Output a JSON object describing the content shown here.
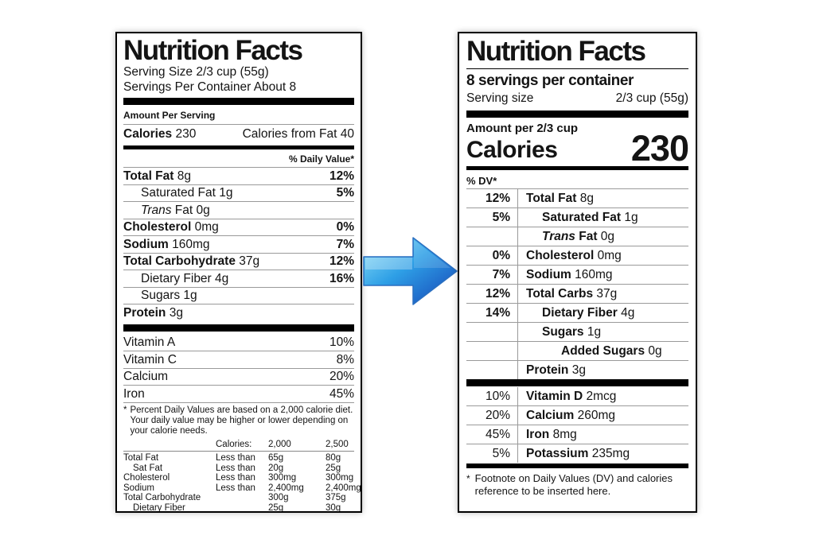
{
  "colors": {
    "arrow_light": "#8BE0F8",
    "arrow_mid": "#2E9FE6",
    "arrow_dark": "#1543B6",
    "arrow_stroke": "#2A6FC0",
    "bar": "#000000",
    "hairline": "#9A9A9A"
  },
  "arrow": {
    "meaning": "old label transitions to new label"
  },
  "old_label": {
    "title": "Nutrition Facts",
    "serving_size_line": "Serving Size 2/3 cup (55g)",
    "servings_line": "Servings Per Container About 8",
    "amount_header": "Amount Per Serving",
    "calories_label": "Calories",
    "calories_value": "230",
    "calories_from_fat": "Calories from Fat 40",
    "dv_header": "% Daily Value*",
    "rows": [
      {
        "n": "Total Fat",
        "a": "8g",
        "dv": "12%",
        "b": true,
        "ind": 0
      },
      {
        "n": "Saturated Fat",
        "a": "1g",
        "dv": "5%",
        "b": false,
        "ind": 1
      },
      {
        "it": "Trans",
        "n": "Fat",
        "a": "0g",
        "dv": "",
        "b": false,
        "ind": 1
      },
      {
        "n": "Cholesterol",
        "a": "0mg",
        "dv": "0%",
        "b": true,
        "ind": 0
      },
      {
        "n": "Sodium",
        "a": "160mg",
        "dv": "7%",
        "b": true,
        "ind": 0
      },
      {
        "n": "Total Carbohydrate",
        "a": "37g",
        "dv": "12%",
        "b": true,
        "ind": 0
      },
      {
        "n": "Dietary Fiber",
        "a": "4g",
        "dv": "16%",
        "b": false,
        "ind": 1
      },
      {
        "n": "Sugars",
        "a": "1g",
        "dv": "",
        "b": false,
        "ind": 1
      },
      {
        "n": "Protein",
        "a": "3g",
        "dv": "",
        "b": true,
        "ind": 0
      }
    ],
    "vitamins": [
      {
        "n": "Vitamin A",
        "dv": "10%"
      },
      {
        "n": "Vitamin C",
        "dv": "8%"
      },
      {
        "n": "Calcium",
        "dv": "20%"
      },
      {
        "n": "Iron",
        "dv": "45%"
      }
    ],
    "footnote": {
      "ast": "*",
      "text": "Percent Daily Values are based on a 2,000 calorie diet. Your daily value may be higher or lower depending on your calorie needs."
    },
    "footnote_table": {
      "header": [
        "",
        "Calories:",
        "2,000",
        "2,500"
      ],
      "rows": [
        {
          "c": [
            "Total Fat",
            "Less than",
            "65g",
            "80g"
          ],
          "ind": false
        },
        {
          "c": [
            "Sat Fat",
            "Less than",
            "20g",
            "25g"
          ],
          "ind": true
        },
        {
          "c": [
            "Cholesterol",
            "Less than",
            "300mg",
            "300mg"
          ],
          "ind": false
        },
        {
          "c": [
            "Sodium",
            "Less than",
            "2,400mg",
            "2,400mg"
          ],
          "ind": false
        },
        {
          "c": [
            "Total Carbohydrate",
            "",
            "300g",
            "375g"
          ],
          "ind": false
        },
        {
          "c": [
            "Dietary Fiber",
            "",
            "25g",
            "30g"
          ],
          "ind": true
        }
      ]
    }
  },
  "new_label": {
    "title": "Nutrition Facts",
    "servings_line": "8 servings per container",
    "serving_size_label": "Serving size",
    "serving_size_value": "2/3 cup (55g)",
    "amount_header": "Amount per 2/3 cup",
    "calories_label": "Calories",
    "calories_value": "230",
    "dv_header": "% DV*",
    "rows": [
      {
        "dv": "12%",
        "n": "Total Fat",
        "a": "8g",
        "ind": 0
      },
      {
        "dv": "5%",
        "n": "Saturated Fat",
        "a": "1g",
        "ind": 1
      },
      {
        "dv": "",
        "it": "Trans",
        "n": "Fat",
        "a": "0g",
        "ind": 1
      },
      {
        "dv": "0%",
        "n": "Cholesterol",
        "a": "0mg",
        "ind": 0
      },
      {
        "dv": "7%",
        "n": "Sodium",
        "a": "160mg",
        "ind": 0
      },
      {
        "dv": "12%",
        "n": "Total Carbs",
        "a": "37g",
        "ind": 0
      },
      {
        "dv": "14%",
        "n": "Dietary Fiber",
        "a": "4g",
        "ind": 1
      },
      {
        "dv": "",
        "n": "Sugars",
        "a": "1g",
        "ind": 1
      },
      {
        "dv": "",
        "n": "Added Sugars",
        "a": "0g",
        "ind": 2
      },
      {
        "dv": "",
        "n": "Protein",
        "a": "3g",
        "ind": 0
      }
    ],
    "vitamin_rows": [
      {
        "dv": "10%",
        "n": "Vitamin D",
        "a": "2mcg"
      },
      {
        "dv": "20%",
        "n": "Calcium",
        "a": "260mg"
      },
      {
        "dv": "45%",
        "n": "Iron",
        "a": "8mg"
      },
      {
        "dv": "5%",
        "n": "Potassium",
        "a": "235mg"
      }
    ],
    "footnote": {
      "ast": "*",
      "text": "Footnote on Daily Values (DV) and calories reference to be inserted here."
    }
  }
}
